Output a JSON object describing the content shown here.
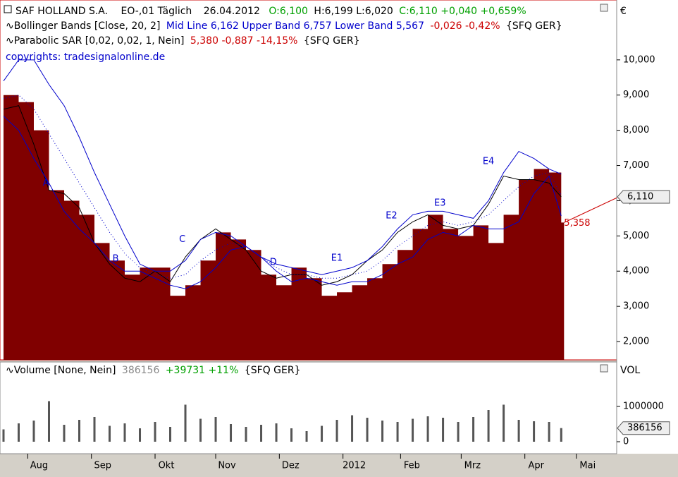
{
  "header": {
    "symbol": "SAF HOLLAND S.A.",
    "unit": "EO-,01 Täglich",
    "date": "26.04.2012",
    "open": "O:6,100",
    "high_low": "H:6,199 L:6,020",
    "close": "C:6,110 +0,040 +0,659%",
    "bollinger": {
      "name": "Bollinger Bands [Close, 20, 2]",
      "values": "Mid Line 6,162 Upper Band 6,757 Lower Band 5,567",
      "change": "-0,026 -0,42%",
      "market": "{SFQ GER}"
    },
    "sar": {
      "name": "Parabolic SAR [0,02, 0,02, 1, Nein]",
      "values": "5,380 -0,887 -14,15%",
      "market": "{SFQ GER}"
    },
    "copyright": "copyrights: tradesignalonline.de",
    "volume": {
      "name": "Volume [None, Nein]",
      "value": "386156",
      "change": "+39731 +11%",
      "market": "{SFQ GER}"
    }
  },
  "chart_data": [
    {
      "type": "line",
      "y_axis_label": "€",
      "x": [
        0,
        5,
        10,
        15,
        20,
        25,
        30,
        35,
        40,
        45,
        50,
        55,
        60,
        65,
        70,
        75,
        80,
        85,
        90,
        95,
        100,
        105,
        110,
        115,
        120,
        125,
        130,
        135,
        140,
        145,
        150,
        155,
        160,
        165,
        170,
        175,
        180,
        184
      ],
      "xlim": [
        -1.16,
        202.3
      ],
      "xticks": [
        {
          "value": 8,
          "label": "Aug"
        },
        {
          "value": 29,
          "label": "Sep"
        },
        {
          "value": 50,
          "label": "Okt"
        },
        {
          "value": 70,
          "label": "Nov"
        },
        {
          "value": 91,
          "label": "Dez"
        },
        {
          "value": 112,
          "label": "2012"
        },
        {
          "value": 131,
          "label": "Feb"
        },
        {
          "value": 151,
          "label": "Mrz"
        },
        {
          "value": 172,
          "label": "Apr"
        },
        {
          "value": 189,
          "label": "Mai"
        }
      ],
      "ylim": [
        1.48,
        11.6
      ],
      "yticks": [
        {
          "value": 2,
          "label": "2,000"
        },
        {
          "value": 3,
          "label": "3,000"
        },
        {
          "value": 4,
          "label": "4,000"
        },
        {
          "value": 5,
          "label": "5,000"
        },
        {
          "value": 6,
          "label": "6,000"
        },
        {
          "value": 7,
          "label": "7,000"
        },
        {
          "value": 8,
          "label": "8,000"
        },
        {
          "value": 9,
          "label": "9,000"
        },
        {
          "value": 10,
          "label": "10,000"
        }
      ],
      "series": [
        {
          "style": "step-area",
          "color": "#800000",
          "values": [
            9.0,
            8.8,
            8.0,
            6.3,
            6.0,
            5.6,
            4.8,
            4.3,
            3.9,
            4.1,
            4.1,
            3.3,
            3.6,
            4.3,
            5.1,
            4.9,
            4.6,
            3.9,
            3.6,
            4.1,
            3.8,
            3.3,
            3.4,
            3.6,
            3.8,
            4.2,
            4.6,
            5.2,
            5.6,
            5.2,
            5.0,
            5.3,
            4.8,
            5.6,
            6.6,
            6.9,
            6.8,
            5.38
          ]
        },
        {
          "style": "line",
          "color": "#000000",
          "values": [
            8.6,
            8.7,
            7.6,
            6.3,
            6.2,
            5.8,
            4.8,
            4.2,
            3.8,
            3.7,
            4.0,
            3.7,
            4.4,
            4.9,
            5.2,
            4.9,
            4.6,
            4.0,
            3.8,
            3.9,
            3.9,
            3.6,
            3.7,
            3.9,
            4.3,
            4.6,
            5.1,
            5.4,
            5.6,
            5.3,
            5.2,
            5.3,
            5.9,
            6.7,
            6.6,
            6.6,
            6.5,
            6.11
          ]
        },
        {
          "style": "line",
          "color": "#0000cc",
          "values": [
            9.4,
            10.0,
            10.0,
            9.3,
            8.7,
            7.8,
            6.8,
            5.9,
            5.0,
            4.2,
            4.0,
            4.0,
            4.3,
            4.9,
            5.1,
            5.0,
            4.7,
            4.4,
            4.2,
            4.1,
            4.0,
            3.9,
            4.0,
            4.1,
            4.3,
            4.7,
            5.2,
            5.6,
            5.7,
            5.7,
            5.6,
            5.5,
            6.0,
            6.8,
            7.4,
            7.2,
            6.9,
            6.757
          ]
        },
        {
          "style": "dotted",
          "color": "#0000cc",
          "values": [
            8.9,
            9.0,
            8.6,
            7.9,
            7.2,
            6.5,
            5.8,
            5.1,
            4.5,
            4.1,
            3.9,
            3.8,
            3.9,
            4.3,
            4.6,
            4.8,
            4.7,
            4.4,
            4.1,
            3.9,
            3.9,
            3.8,
            3.8,
            3.9,
            4.0,
            4.3,
            4.7,
            5.0,
            5.3,
            5.4,
            5.3,
            5.4,
            5.6,
            6.0,
            6.4,
            6.7,
            6.8,
            6.162
          ]
        },
        {
          "style": "line",
          "color": "#0000cc",
          "values": [
            8.4,
            8.0,
            7.2,
            6.5,
            5.7,
            5.2,
            4.8,
            4.3,
            4.0,
            4.0,
            3.8,
            3.6,
            3.5,
            3.7,
            4.1,
            4.6,
            4.7,
            4.4,
            4.0,
            3.7,
            3.8,
            3.7,
            3.6,
            3.7,
            3.7,
            3.9,
            4.2,
            4.4,
            4.9,
            5.1,
            5.0,
            5.3,
            5.2,
            5.2,
            5.4,
            6.2,
            6.7,
            5.567
          ]
        }
      ],
      "annotations": [
        {
          "text": "A",
          "x": 14,
          "y": 6.5
        },
        {
          "text": "B",
          "x": 37,
          "y": 4.35
        },
        {
          "text": "C",
          "x": 59,
          "y": 4.9
        },
        {
          "text": "D",
          "x": 89,
          "y": 4.25
        },
        {
          "text": "E1",
          "x": 110,
          "y": 4.37
        },
        {
          "text": "E2",
          "x": 128,
          "y": 5.57
        },
        {
          "text": "E3",
          "x": 144,
          "y": 5.93
        },
        {
          "text": "E4",
          "x": 160,
          "y": 7.11
        },
        {
          "text": "5,358",
          "x": 184,
          "y": 5.358
        }
      ],
      "last_value": {
        "value": 6.11,
        "label": "6,110"
      }
    },
    {
      "type": "bar",
      "y_axis_label": "VOL",
      "color": "#555555",
      "x": [
        0,
        5,
        10,
        15,
        20,
        25,
        30,
        35,
        40,
        45,
        50,
        55,
        60,
        65,
        70,
        75,
        80,
        85,
        90,
        95,
        100,
        105,
        110,
        115,
        120,
        125,
        130,
        135,
        140,
        145,
        150,
        155,
        160,
        165,
        170,
        175,
        180,
        184
      ],
      "xlim": [
        -1.16,
        202.3
      ],
      "values": [
        350000,
        520000,
        600000,
        1150000,
        480000,
        620000,
        700000,
        450000,
        520000,
        380000,
        560000,
        420000,
        1050000,
        650000,
        700000,
        500000,
        420000,
        480000,
        520000,
        380000,
        300000,
        450000,
        620000,
        750000,
        680000,
        600000,
        560000,
        650000,
        720000,
        680000,
        560000,
        700000,
        900000,
        1050000,
        620000,
        580000,
        560000,
        386156
      ],
      "ylim": [
        -280000,
        2280000
      ],
      "yticks": [
        {
          "value": 0,
          "label": "0"
        },
        {
          "value": 1000000,
          "label": "1000000"
        }
      ],
      "last_value": {
        "value": 386156,
        "label": "386156"
      }
    }
  ]
}
